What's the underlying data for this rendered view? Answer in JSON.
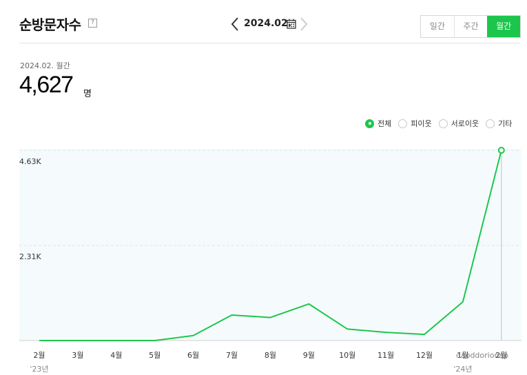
{
  "header": {
    "title": "순방문자수",
    "help_icon": "question-icon",
    "date_label": "2024.02.",
    "tabs": [
      {
        "label": "일간",
        "active": false
      },
      {
        "label": "주간",
        "active": false
      },
      {
        "label": "월간",
        "active": true
      }
    ]
  },
  "summary": {
    "period_label": "2024.02. 월간",
    "value": "4,627",
    "unit": "명"
  },
  "filters": [
    {
      "label": "전체",
      "checked": true
    },
    {
      "label": "피이웃",
      "checked": false
    },
    {
      "label": "서로이웃",
      "checked": false
    },
    {
      "label": "기타",
      "checked": false
    }
  ],
  "watermark": "daoddorionap",
  "colors": {
    "accent": "#1cc64c",
    "plot_bg": "#f5fbfd"
  },
  "chart_data": {
    "type": "line",
    "categories": [
      "2월",
      "3월",
      "4월",
      "5월",
      "6월",
      "7월",
      "8월",
      "9월",
      "10월",
      "11월",
      "12월",
      "1월",
      "2월"
    ],
    "year_labels": [
      {
        "index": 0,
        "label": "'23년"
      },
      {
        "index": 11,
        "label": "'24년"
      }
    ],
    "series": [
      {
        "values": [
          0,
          0,
          0,
          0,
          120,
          620,
          560,
          890,
          280,
          200,
          150,
          940,
          4627
        ]
      }
    ],
    "yticks": [
      {
        "value": 2313,
        "label": "2.31K"
      },
      {
        "value": 4627,
        "label": "4.63K"
      }
    ],
    "ylim": [
      0,
      4627
    ],
    "highlight_index": 12,
    "grid": true
  }
}
